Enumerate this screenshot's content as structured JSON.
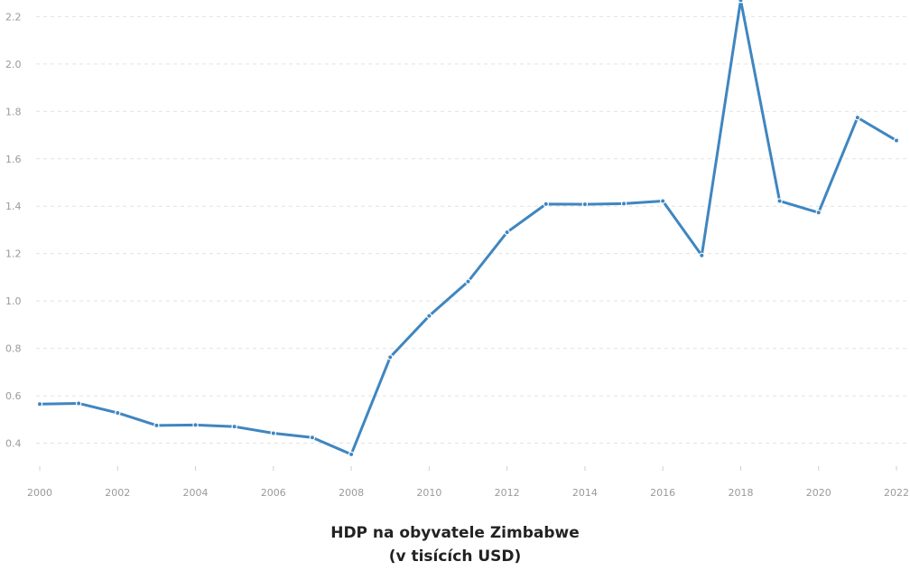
{
  "chart_data": {
    "type": "line",
    "title": "HDP na obyvatele Zimbabwe",
    "subtitle": "(v tisících USD)",
    "xlabel": "",
    "ylabel": "",
    "x": [
      2000,
      2001,
      2002,
      2003,
      2004,
      2005,
      2006,
      2007,
      2008,
      2009,
      2010,
      2011,
      2012,
      2013,
      2014,
      2015,
      2016,
      2017,
      2018,
      2019,
      2020,
      2021,
      2022
    ],
    "x_tick_labels": [
      "2000",
      "2002",
      "2004",
      "2006",
      "2008",
      "2010",
      "2012",
      "2014",
      "2016",
      "2018",
      "2020",
      "2022"
    ],
    "y_tick_labels": [
      "0.4",
      "0.6",
      "0.8",
      "1.0",
      "1.2",
      "1.4",
      "1.6",
      "1.8",
      "2.0",
      "2.2"
    ],
    "series": [
      {
        "values": [
          0.565,
          0.568,
          0.528,
          0.475,
          0.477,
          0.47,
          0.442,
          0.424,
          0.353,
          0.763,
          0.937,
          1.082,
          1.29,
          1.409,
          1.408,
          1.411,
          1.422,
          1.192,
          2.269,
          1.422,
          1.373,
          1.774,
          1.677
        ],
        "color": "#3f86c0"
      }
    ],
    "xlim": [
      2000,
      2022
    ],
    "ylim": [
      0.2,
      2.27
    ],
    "grid": true,
    "legend": "none"
  }
}
